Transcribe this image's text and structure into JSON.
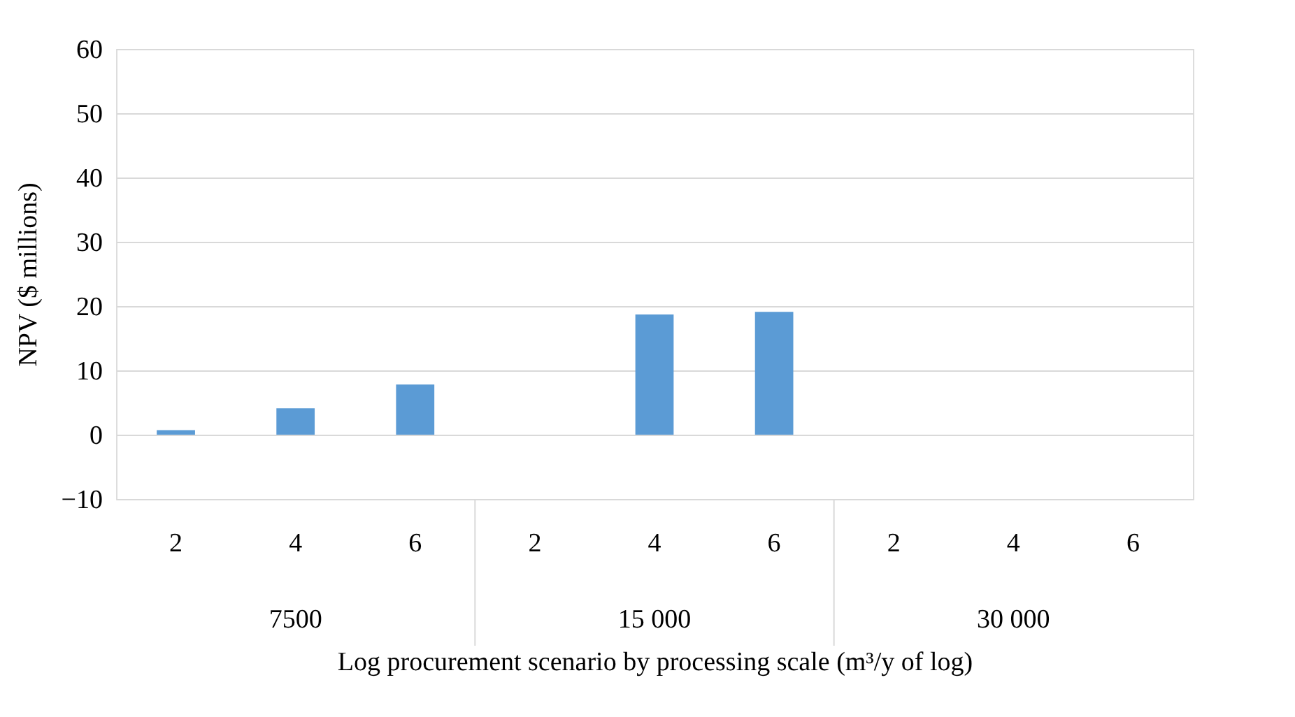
{
  "chart_data": {
    "type": "bar",
    "xlabel": "Log procurement scenario by processing scale (m³/y of log)",
    "ylabel": "NPV ($ millions)",
    "categories": [
      "2",
      "4",
      "6",
      "2",
      "4",
      "6",
      "2",
      "4",
      "6"
    ],
    "series": [
      {
        "color": "#5b9bd5",
        "values": [
          0.7,
          4.1,
          7.8,
          null,
          18.7,
          19.1,
          null,
          null,
          null
        ]
      }
    ],
    "annotations": [
      "7500",
      "15 000",
      "30 000"
    ],
    "ylim": [
      -10,
      60
    ],
    "yticks": [
      -10,
      0,
      10,
      20,
      30,
      40,
      50,
      60
    ],
    "grid": "y"
  }
}
